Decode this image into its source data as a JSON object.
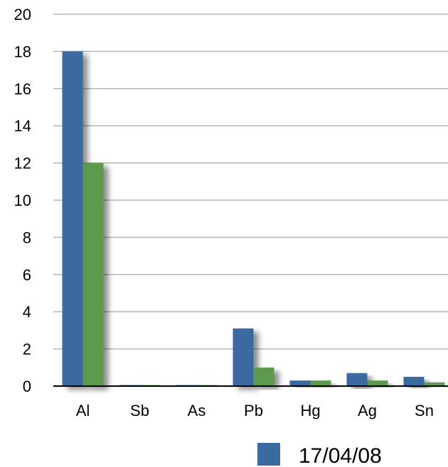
{
  "chart_data": {
    "type": "bar",
    "categories": [
      "Al",
      "Sb",
      "As",
      "Pb",
      "Hg",
      "Ag",
      "Sn"
    ],
    "series": [
      {
        "name": "17/04/08",
        "color": "#3b6aa0",
        "values": [
          18,
          0.02,
          0.02,
          3.1,
          0.3,
          0.7,
          0.5
        ]
      },
      {
        "color": "#5d9a4e",
        "values": [
          12,
          0.02,
          0.02,
          1.0,
          0.3,
          0.3,
          0.2
        ]
      }
    ],
    "ylim": [
      0,
      20
    ],
    "yticks": [
      0,
      2,
      4,
      6,
      8,
      10,
      12,
      14,
      16,
      18,
      20
    ],
    "grid": true,
    "legend_position": "bottom-right",
    "colors": {
      "grid": "#b5b5b5",
      "axis": "#000000"
    }
  }
}
